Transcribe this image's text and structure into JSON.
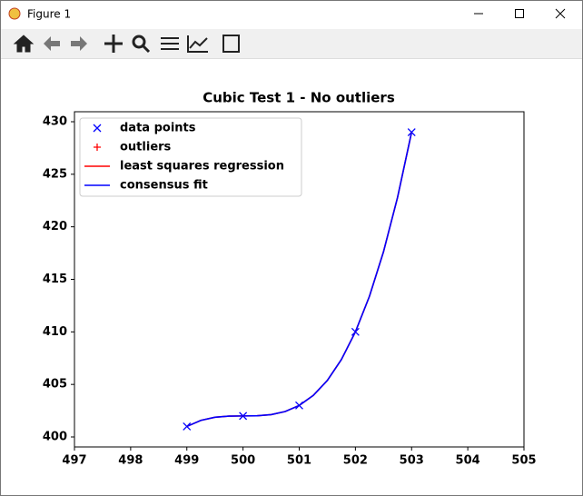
{
  "window": {
    "title": "Figure 1"
  },
  "chart_data": {
    "type": "line",
    "title": "Cubic Test 1 - No outliers",
    "xlim": [
      497,
      505
    ],
    "ylim": [
      399.05,
      430.95
    ],
    "xticks": [
      497,
      498,
      499,
      500,
      501,
      502,
      503,
      504,
      505
    ],
    "yticks": [
      400,
      405,
      410,
      415,
      420,
      425,
      430
    ],
    "legend": "upper left",
    "series": [
      {
        "name": "data points",
        "color": "#0000ff",
        "marker": "x",
        "line": false,
        "x": [
          499,
          500,
          501,
          502,
          503
        ],
        "values": [
          401,
          402,
          403,
          410,
          429
        ]
      },
      {
        "name": "outliers",
        "color": "#ff0000",
        "marker": "+",
        "line": false,
        "x": [],
        "values": []
      },
      {
        "name": "least squares regression",
        "color": "#ff0000",
        "marker": null,
        "line": true,
        "x": [
          499,
          499.25,
          499.5,
          499.75,
          500,
          500.25,
          500.5,
          500.75,
          501,
          501.25,
          501.5,
          501.75,
          502,
          502.25,
          502.5,
          502.75,
          503
        ],
        "values": [
          401,
          401.578125,
          401.875,
          401.984375,
          402,
          402.015625,
          402.125,
          402.421875,
          403,
          403.953125,
          405.375,
          407.359375,
          410,
          413.390625,
          417.625,
          422.796875,
          429
        ]
      },
      {
        "name": "consensus fit",
        "color": "#0000ff",
        "marker": null,
        "line": true,
        "x": [
          499,
          499.25,
          499.5,
          499.75,
          500,
          500.25,
          500.5,
          500.75,
          501,
          501.25,
          501.5,
          501.75,
          502,
          502.25,
          502.5,
          502.75,
          503
        ],
        "values": [
          401,
          401.578125,
          401.875,
          401.984375,
          402,
          402.015625,
          402.125,
          402.421875,
          403,
          403.953125,
          405.375,
          407.359375,
          410,
          413.390625,
          417.625,
          422.796875,
          429
        ]
      }
    ]
  }
}
